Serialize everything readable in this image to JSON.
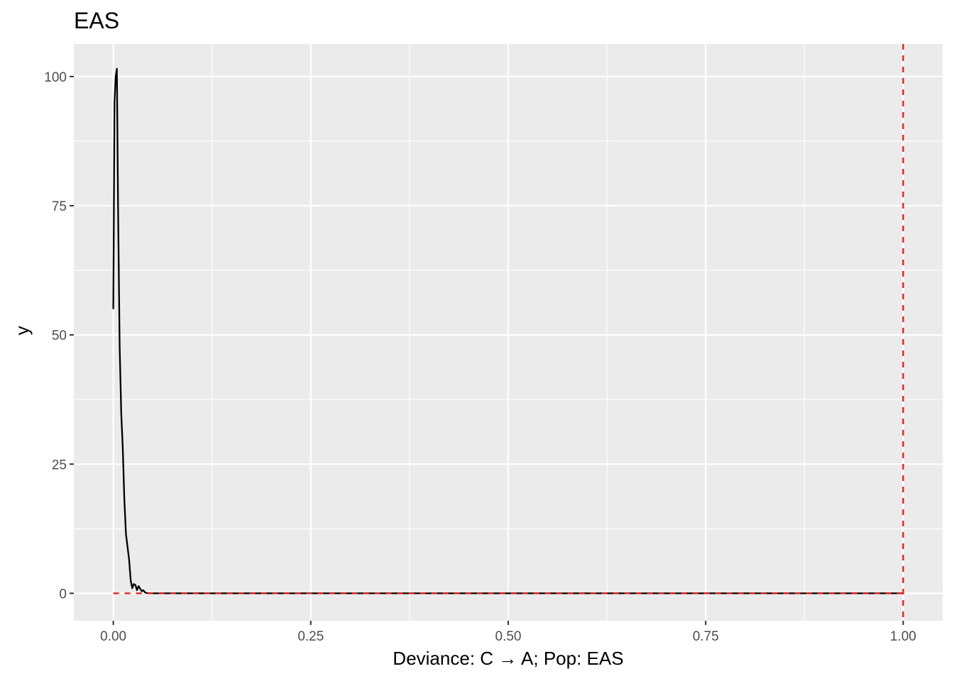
{
  "chart_data": {
    "type": "line",
    "title": "EAS",
    "xlabel": "Deviance: C → A; Pop: EAS",
    "ylabel": "y",
    "xlim": [
      -0.05,
      1.05
    ],
    "ylim": [
      -5.3,
      106.3
    ],
    "x_ticks": [
      {
        "value": 0.0,
        "label": "0.00"
      },
      {
        "value": 0.25,
        "label": "0.25"
      },
      {
        "value": 0.5,
        "label": "0.50"
      },
      {
        "value": 0.75,
        "label": "0.75"
      },
      {
        "value": 1.0,
        "label": "1.00"
      }
    ],
    "y_ticks": [
      {
        "value": 0,
        "label": "0"
      },
      {
        "value": 25,
        "label": "25"
      },
      {
        "value": 50,
        "label": "50"
      },
      {
        "value": 75,
        "label": "75"
      },
      {
        "value": 100,
        "label": "100"
      }
    ],
    "grid": true,
    "background": "#ebebeb",
    "grid_color": "#ffffff",
    "series": [
      {
        "style": "solid",
        "color": "#000000",
        "x": [
          0.0,
          0.0015,
          0.003,
          0.0045,
          0.006,
          0.008,
          0.01,
          0.012,
          0.014,
          0.016,
          0.018,
          0.02,
          0.022,
          0.024,
          0.026,
          0.028,
          0.03,
          0.032,
          0.034,
          0.036,
          0.038,
          0.04,
          0.042,
          0.045,
          0.05,
          0.06,
          0.08,
          0.1,
          0.2,
          0.3,
          0.4,
          0.5,
          0.6,
          0.7,
          0.8,
          0.9,
          1.0
        ],
        "y": [
          55,
          95,
          100,
          101.5,
          75,
          48,
          35,
          28,
          18,
          11.5,
          9,
          6.5,
          2.5,
          1,
          1.8,
          1.6,
          0.6,
          1.4,
          0.9,
          0.4,
          0.6,
          0.2,
          0.05,
          0.02,
          0,
          0,
          0,
          0,
          0,
          0,
          0,
          0,
          0,
          0,
          0,
          0,
          0
        ]
      },
      {
        "style": "dashed",
        "color": "#e41a1c",
        "x": [
          0.0,
          1.0
        ],
        "y": [
          0,
          0
        ]
      }
    ],
    "vlines": [
      {
        "x": 1.0,
        "style": "dashed",
        "color": "#e41a1c"
      }
    ]
  }
}
